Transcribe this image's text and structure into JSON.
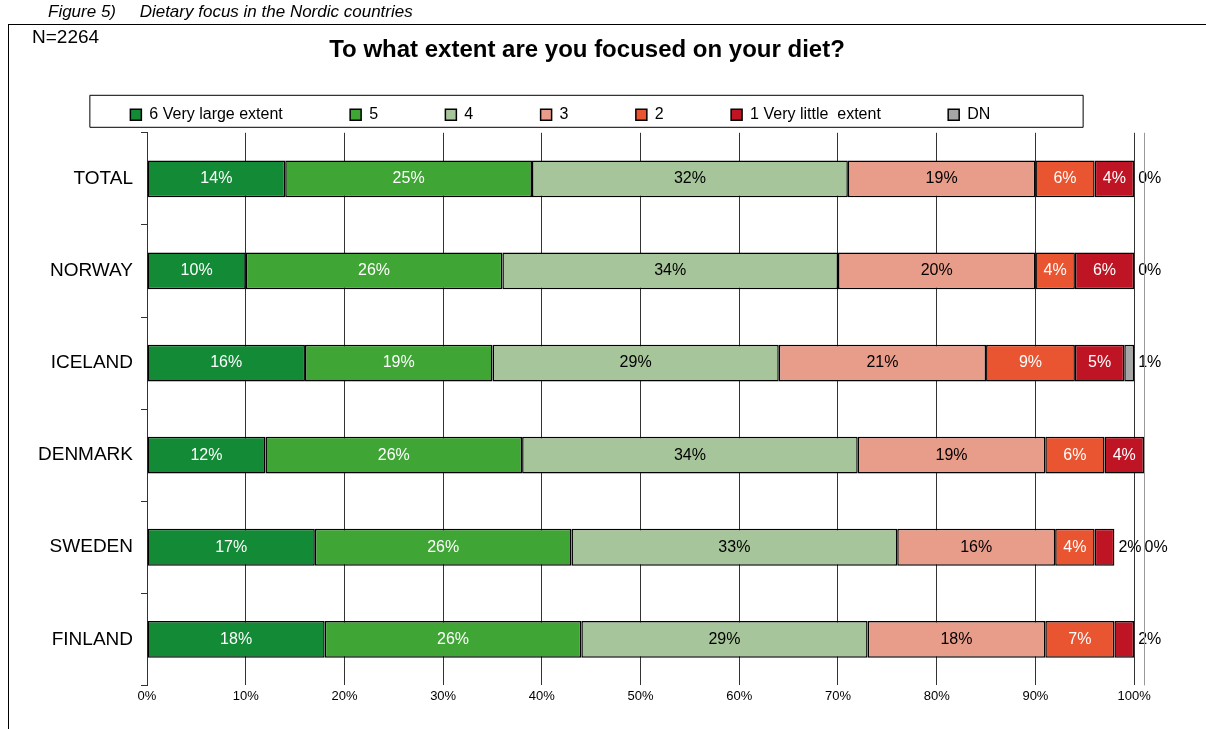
{
  "chart_data": {
    "type": "bar",
    "orientation": "horizontal",
    "stacked": true,
    "title": "To what extent are you focused on your diet?",
    "annotations": [
      "Figure 5)     Dietary focus in the Nordic countries",
      "N=2264"
    ],
    "categories": [
      "TOTAL",
      "NORWAY",
      "ICELAND",
      "DENMARK",
      "SWEDEN",
      "FINLAND"
    ],
    "series": [
      {
        "name": "6 Very large extent",
        "color": "#138a36",
        "values": [
          14,
          10,
          16,
          12,
          17,
          18
        ],
        "value_labels": [
          "14%",
          "10%",
          "16%",
          "12%",
          "17%",
          "18%"
        ]
      },
      {
        "name": "5",
        "color": "#3fa535",
        "values": [
          25,
          26,
          19,
          26,
          26,
          26
        ],
        "value_labels": [
          "25%",
          "26%",
          "19%",
          "26%",
          "26%",
          "26%"
        ]
      },
      {
        "name": "4",
        "color": "#a6c59a",
        "values": [
          32,
          34,
          29,
          34,
          33,
          29
        ],
        "value_labels": [
          "32%",
          "34%",
          "29%",
          "34%",
          "33%",
          "29%"
        ]
      },
      {
        "name": "3",
        "color": "#e89c8a",
        "values": [
          19,
          20,
          21,
          19,
          16,
          18
        ],
        "value_labels": [
          "19%",
          "20%",
          "21%",
          "19%",
          "16%",
          "18%"
        ]
      },
      {
        "name": "2",
        "color": "#e85530",
        "values": [
          6,
          4,
          9,
          6,
          4,
          7
        ],
        "value_labels": [
          "6%",
          "4%",
          "9%",
          "6%",
          "4%",
          "7%"
        ]
      },
      {
        "name": "1 Very little  extent",
        "color": "#bf1424",
        "values": [
          4,
          6,
          5,
          4,
          2,
          2
        ],
        "value_labels": [
          "4%",
          "6%",
          "5%",
          "4%",
          "2%",
          "2%"
        ]
      },
      {
        "name": "DN",
        "color": "#a6a6a6",
        "values": [
          0,
          0,
          1,
          null,
          0,
          null
        ],
        "value_labels": [
          "0%",
          "0%",
          "1%",
          null,
          "0%",
          null
        ]
      }
    ],
    "xlim": [
      0,
      101
    ],
    "xticks": [
      {
        "value": 0,
        "label": "0%"
      },
      {
        "value": 10,
        "label": "10%"
      },
      {
        "value": 20,
        "label": "20%"
      },
      {
        "value": 30,
        "label": "30%"
      },
      {
        "value": 40,
        "label": "40%"
      },
      {
        "value": 50,
        "label": "50%"
      },
      {
        "value": 60,
        "label": "60%"
      },
      {
        "value": 70,
        "label": "70%"
      },
      {
        "value": 80,
        "label": "80%"
      },
      {
        "value": 90,
        "label": "90%"
      },
      {
        "value": 100,
        "label": "100%"
      }
    ],
    "grid": "x",
    "legend": "top"
  }
}
